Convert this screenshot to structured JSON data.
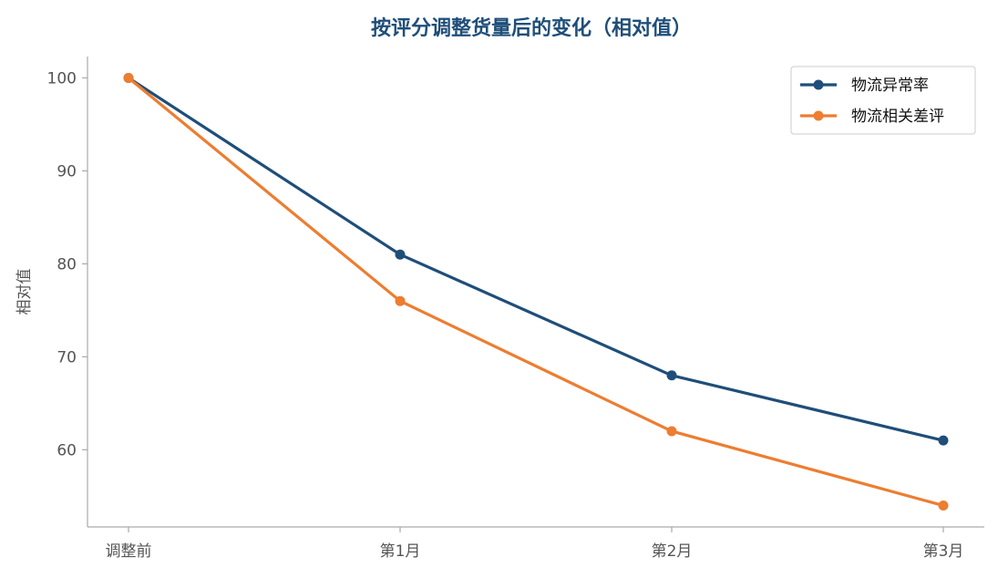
{
  "chart_data": {
    "type": "line",
    "title": "按评分调整货量后的变化（相对值）",
    "xlabel": "",
    "ylabel": "相对值",
    "categories": [
      "调整前",
      "第1月",
      "第2月",
      "第3月"
    ],
    "series": [
      {
        "name": "物流异常率",
        "values": [
          100,
          81,
          68,
          61
        ],
        "color": "#1f4e79"
      },
      {
        "name": "物流相关差评",
        "values": [
          100,
          76,
          62,
          54
        ],
        "color": "#ed7d31"
      }
    ],
    "yticks": [
      60,
      70,
      80,
      90,
      100
    ],
    "ylim": [
      51.7,
      102.3
    ],
    "grid": false,
    "legend": "top-right"
  },
  "colors": {
    "title": "#1f4e79",
    "axis": "#aaaaaa",
    "tick_text": "#555555",
    "legend_border": "#cccccc"
  }
}
